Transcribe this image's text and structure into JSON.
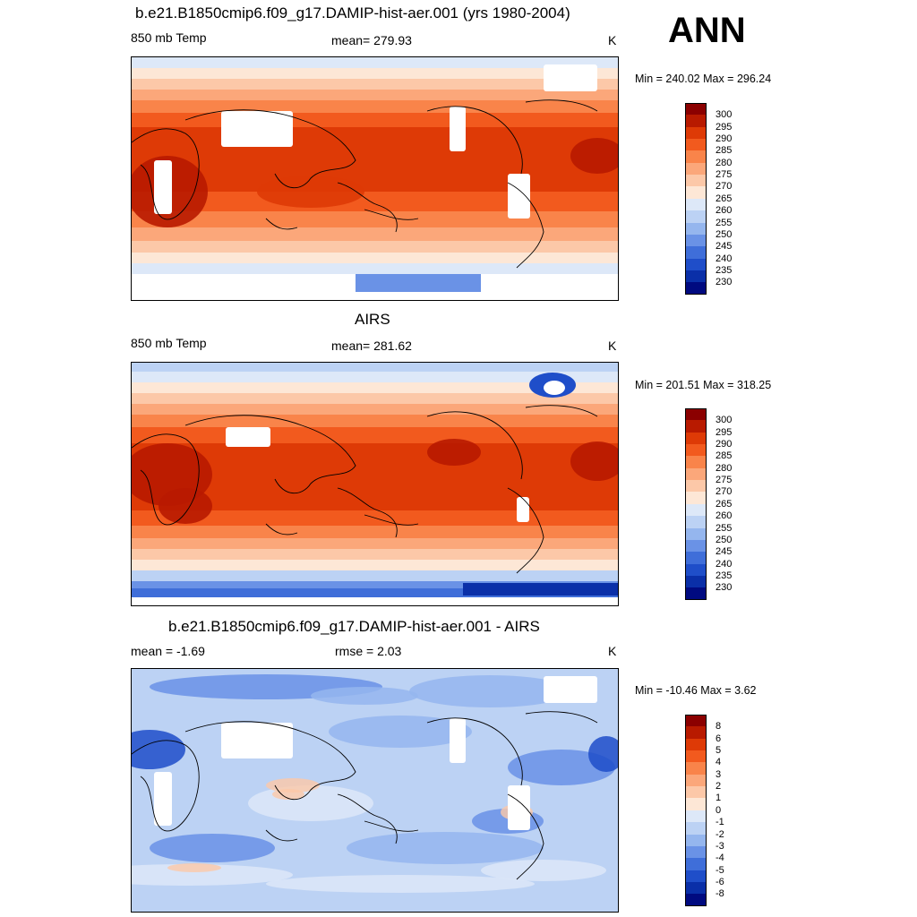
{
  "header": {
    "season": "ANN"
  },
  "panels": [
    {
      "id": "model",
      "title": "b.e21.B1850cmip6.f09_g17.DAMIP-hist-aer.001 (yrs 1980-2004)",
      "left_label": "850 mb Temp",
      "center_label": "mean= 279.93",
      "units": "K",
      "minmax": "Min = 240.02 Max = 296.24",
      "field": "model"
    },
    {
      "id": "obs",
      "title": "AIRS",
      "left_label": "850 mb Temp",
      "center_label": "mean= 281.62",
      "units": "K",
      "minmax": "Min = 201.51 Max = 318.25",
      "field": "obs"
    },
    {
      "id": "diff",
      "title": "b.e21.B1850cmip6.f09_g17.DAMIP-hist-aer.001 - AIRS",
      "left_label": "mean =  -1.69",
      "center_label": "rmse =   2.03",
      "units": "K",
      "minmax": "Min = -10.46 Max =   3.62",
      "field": "diff"
    }
  ],
  "colorbars": {
    "temp": {
      "labels": [
        "300",
        "295",
        "290",
        "285",
        "280",
        "275",
        "270",
        "265",
        "260",
        "255",
        "250",
        "245",
        "240",
        "235",
        "230"
      ],
      "colors": [
        "#8b0000",
        "#b81a00",
        "#de3a06",
        "#f25a1e",
        "#f9844a",
        "#fba77a",
        "#fcc8a8",
        "#fde7d6",
        "#dde8f8",
        "#bcd2f4",
        "#95b6ee",
        "#6a92e6",
        "#3f6ed9",
        "#1f4ec9",
        "#0a2fa8",
        "#000a80"
      ]
    },
    "diff": {
      "labels": [
        "8",
        "6",
        "5",
        "4",
        "3",
        "2",
        "1",
        "0",
        "-1",
        "-2",
        "-3",
        "-4",
        "-5",
        "-6",
        "-8"
      ],
      "colors": [
        "#8b0000",
        "#b81a00",
        "#de3a06",
        "#f25a1e",
        "#f9844a",
        "#fba77a",
        "#fcc8a8",
        "#fde7d6",
        "#dde8f8",
        "#bcd2f4",
        "#95b6ee",
        "#6a92e6",
        "#3f6ed9",
        "#1f4ec9",
        "#0a2fa8",
        "#000a80"
      ]
    }
  }
}
